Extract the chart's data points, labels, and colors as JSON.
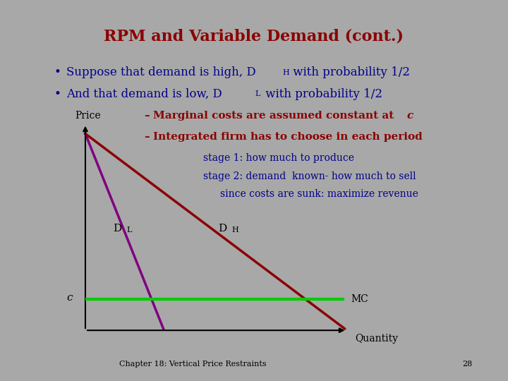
{
  "title": "RPM and Variable Demand (cont.)",
  "title_color": "#8B0000",
  "title_fontsize": 16,
  "slide_bg": "#C8BAA0",
  "outer_bg": "#A8A8A8",
  "bullet_color": "#00008B",
  "bullet_fontsize": 12,
  "dash1_color": "#8B0000",
  "dash2_color": "#8B0000",
  "stage_color": "#00008B",
  "stage_fontsize": 10,
  "axis_color": "#000000",
  "DL_color": "#800080",
  "DH_color": "#8B0000",
  "MC_color": "#00CC00",
  "footer": "Chapter 18: Vertical Price Restraints",
  "page": "28",
  "footer_fontsize": 8
}
